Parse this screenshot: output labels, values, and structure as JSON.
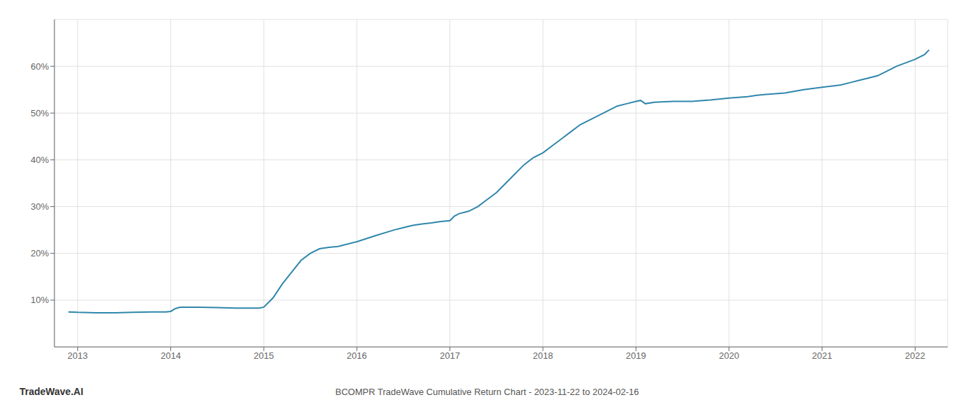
{
  "chart_data": {
    "type": "line",
    "title": "BCOMPR TradeWave Cumulative Return Chart - 2023-11-22 to 2024-02-16",
    "annotation": "TradeWave.AI",
    "color": "#2e86ab",
    "grid": true,
    "x": [
      2012.9,
      2013.0,
      2013.2,
      2013.4,
      2013.6,
      2013.8,
      2013.95,
      2014.0,
      2014.05,
      2014.1,
      2014.3,
      2014.5,
      2014.7,
      2014.9,
      2014.95,
      2015.0,
      2015.1,
      2015.2,
      2015.3,
      2015.4,
      2015.5,
      2015.6,
      2015.7,
      2015.8,
      2016.0,
      2016.2,
      2016.4,
      2016.5,
      2016.6,
      2016.7,
      2016.8,
      2016.9,
      2017.0,
      2017.05,
      2017.1,
      2017.2,
      2017.3,
      2017.4,
      2017.5,
      2017.6,
      2017.7,
      2017.8,
      2017.9,
      2018.0,
      2018.1,
      2018.2,
      2018.3,
      2018.4,
      2018.5,
      2018.6,
      2018.7,
      2018.8,
      2018.9,
      2019.0,
      2019.05,
      2019.1,
      2019.2,
      2019.4,
      2019.6,
      2019.8,
      2020.0,
      2020.2,
      2020.3,
      2020.4,
      2020.6,
      2020.8,
      2021.0,
      2021.2,
      2021.3,
      2021.4,
      2021.5,
      2021.6,
      2021.7,
      2021.8,
      2022.0,
      2022.1,
      2022.15
    ],
    "values": [
      7.5,
      7.4,
      7.3,
      7.3,
      7.4,
      7.5,
      7.5,
      7.6,
      8.2,
      8.5,
      8.5,
      8.4,
      8.3,
      8.3,
      8.3,
      8.5,
      10.5,
      13.5,
      16.0,
      18.5,
      20.0,
      21.0,
      21.3,
      21.5,
      22.5,
      23.8,
      25.0,
      25.5,
      26.0,
      26.3,
      26.5,
      26.8,
      27.0,
      28.0,
      28.5,
      29.0,
      30.0,
      31.5,
      33.0,
      35.0,
      37.0,
      39.0,
      40.5,
      41.5,
      43.0,
      44.5,
      46.0,
      47.5,
      48.5,
      49.5,
      50.5,
      51.5,
      52.0,
      52.5,
      52.7,
      52.0,
      52.3,
      52.5,
      52.5,
      52.8,
      53.2,
      53.5,
      53.8,
      54.0,
      54.3,
      55.0,
      55.5,
      56.0,
      56.5,
      57.0,
      57.5,
      58.0,
      59.0,
      60.0,
      61.5,
      62.5,
      63.5
    ],
    "xlim": [
      2012.75,
      2022.35
    ],
    "xticks": [
      2013,
      2014,
      2015,
      2016,
      2017,
      2018,
      2019,
      2020,
      2021,
      2022
    ],
    "ylim": [
      0,
      70
    ],
    "yticks": [
      {
        "value": 10,
        "label": "10%"
      },
      {
        "value": 20,
        "label": "20%"
      },
      {
        "value": 30,
        "label": "30%"
      },
      {
        "value": 40,
        "label": "40%"
      },
      {
        "value": 50,
        "label": "50%"
      },
      {
        "value": 60,
        "label": "60%"
      }
    ]
  }
}
